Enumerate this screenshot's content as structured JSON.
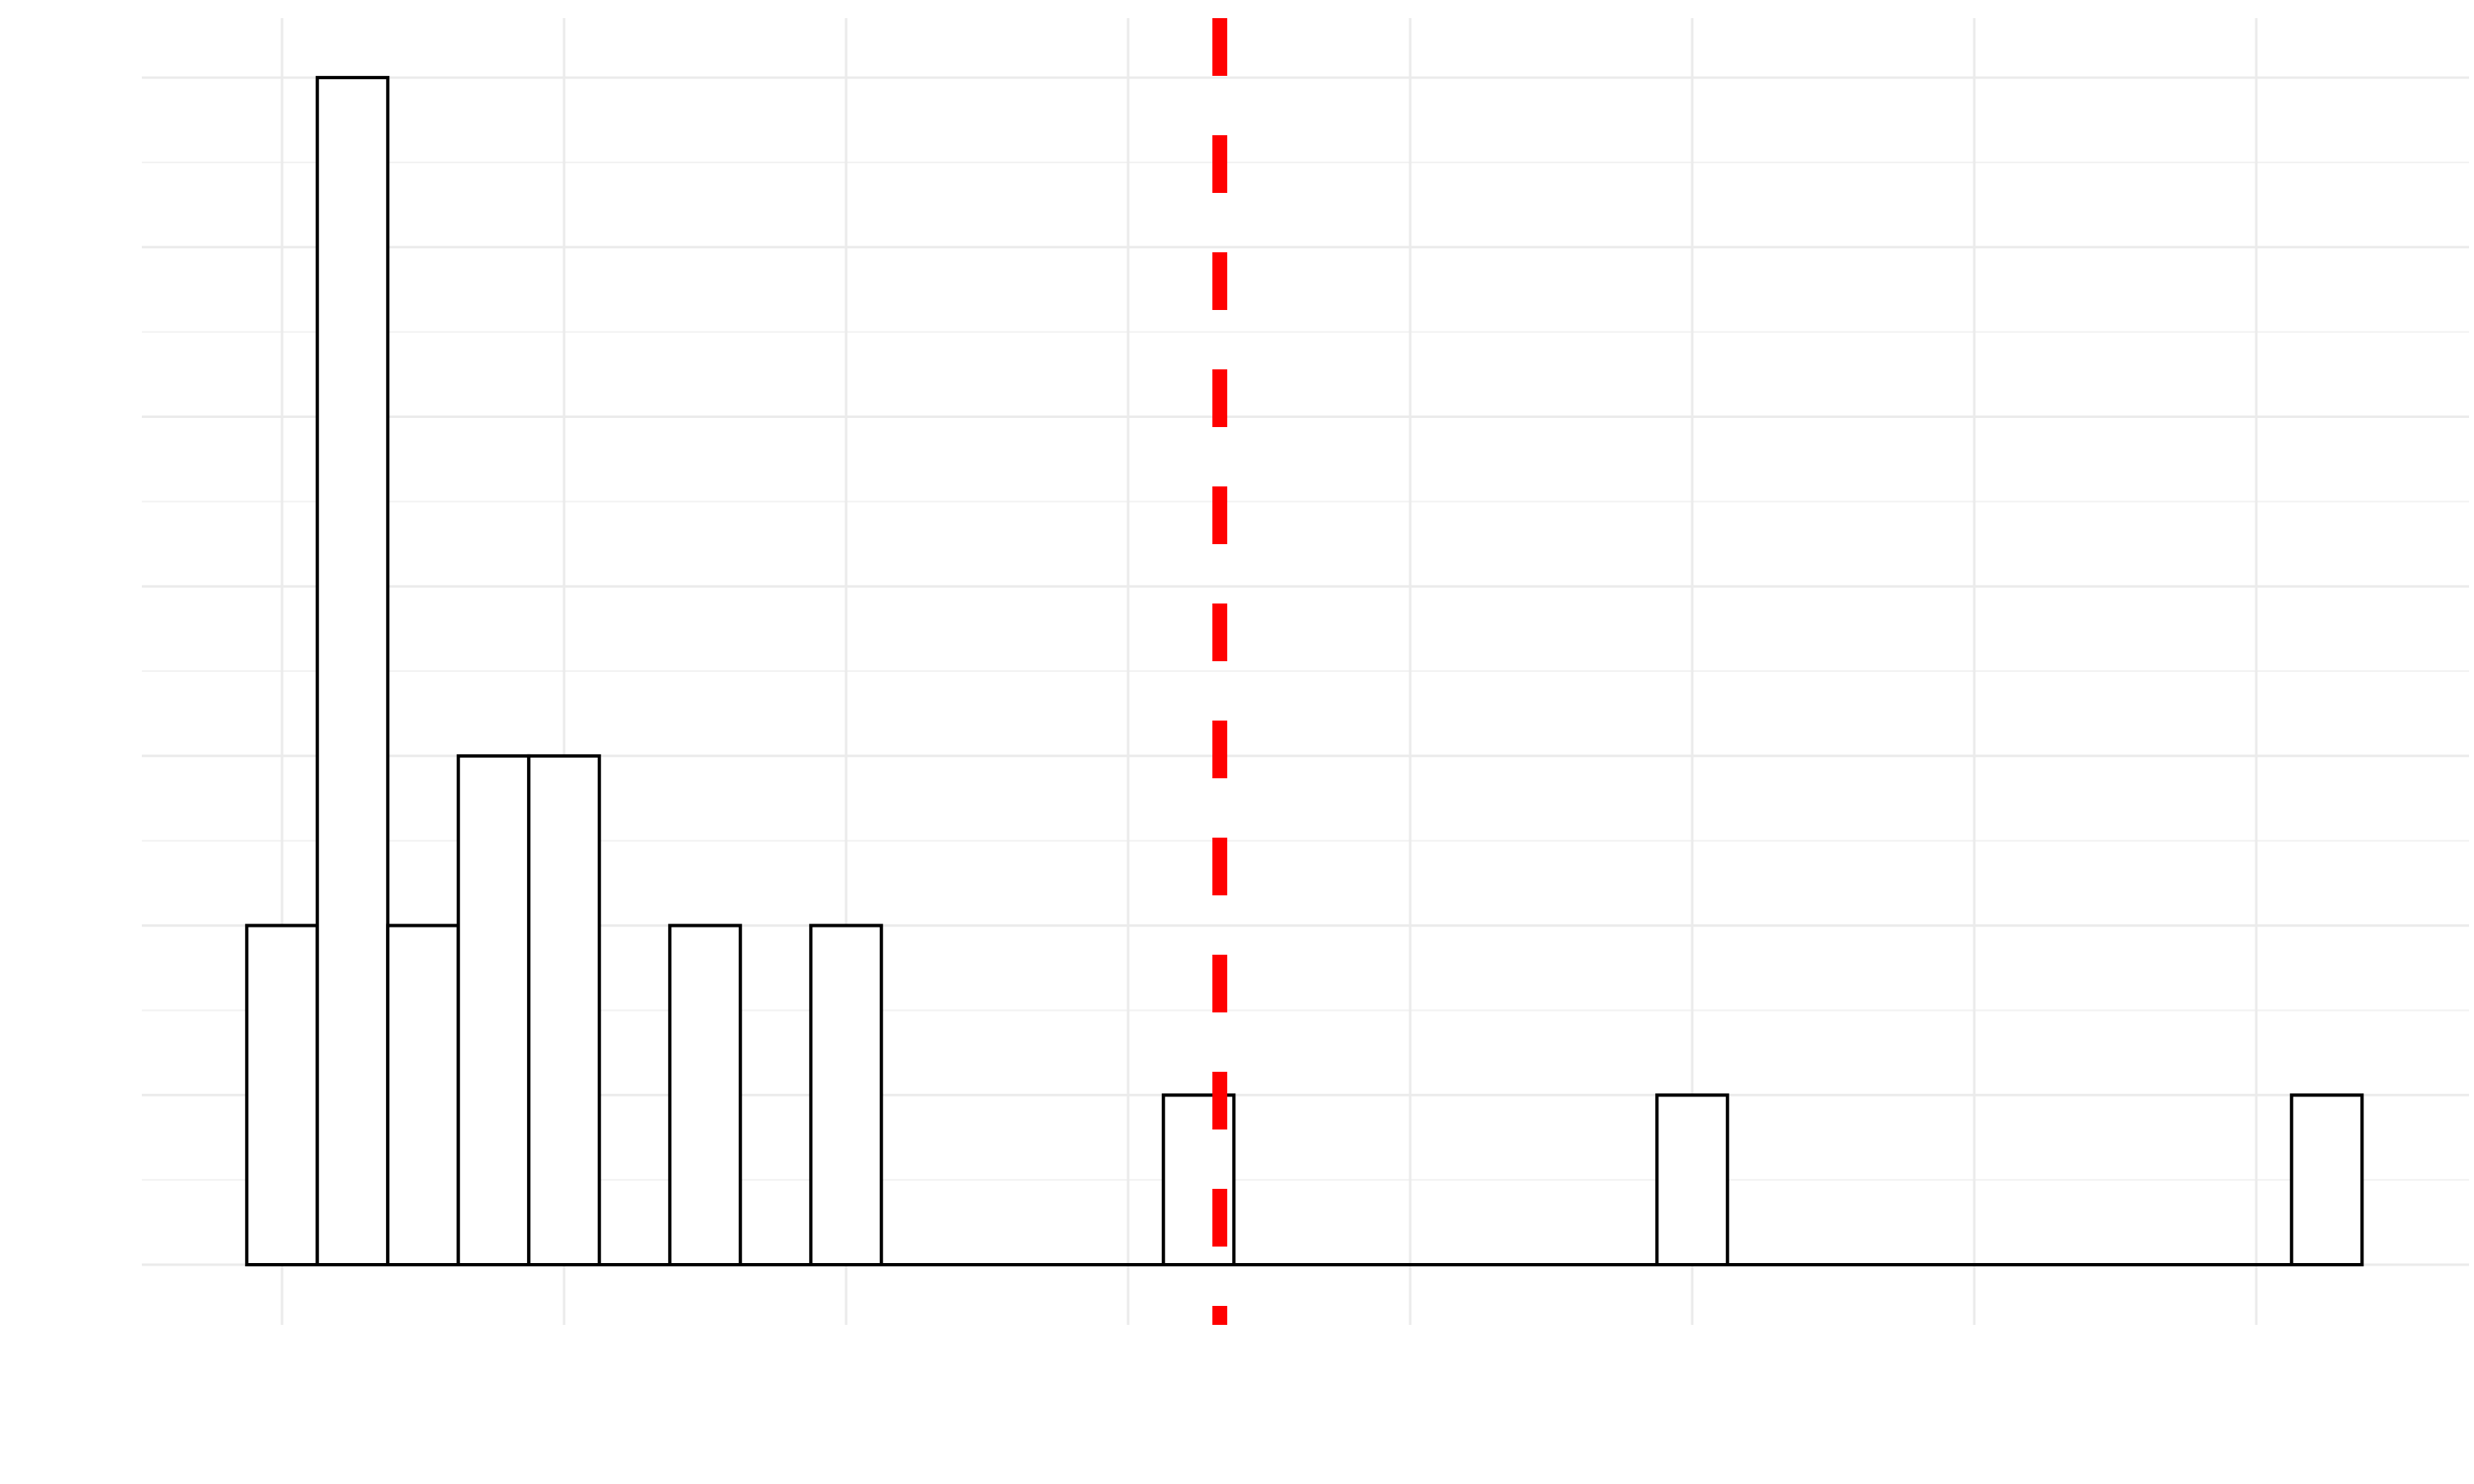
{
  "chart_data": {
    "type": "bar",
    "title": "",
    "xlabel": "",
    "ylabel": "",
    "grid": true,
    "legend": "none",
    "bin_width": 1,
    "x_gridlines": [
      1,
      5,
      9,
      13,
      17,
      21,
      25,
      29
    ],
    "y_gridlines": [
      0,
      1,
      2,
      3,
      4,
      5,
      6,
      7
    ],
    "xlim": [
      -1,
      31.2
    ],
    "ylim": [
      0,
      7.35
    ],
    "bins": [
      {
        "x": 1,
        "count": 2
      },
      {
        "x": 2,
        "count": 7
      },
      {
        "x": 3,
        "count": 2
      },
      {
        "x": 4,
        "count": 3
      },
      {
        "x": 5,
        "count": 3
      },
      {
        "x": 7,
        "count": 2
      },
      {
        "x": 9,
        "count": 2
      },
      {
        "x": 14,
        "count": 1
      },
      {
        "x": 21,
        "count": 1
      },
      {
        "x": 30,
        "count": 1
      }
    ],
    "reference_line": {
      "x": 14.3,
      "color": "#ff0000",
      "style": "dashed"
    },
    "colors": {
      "bar_fill": "#ffffff",
      "bar_outline": "#000000",
      "grid": "#ebebeb"
    }
  }
}
